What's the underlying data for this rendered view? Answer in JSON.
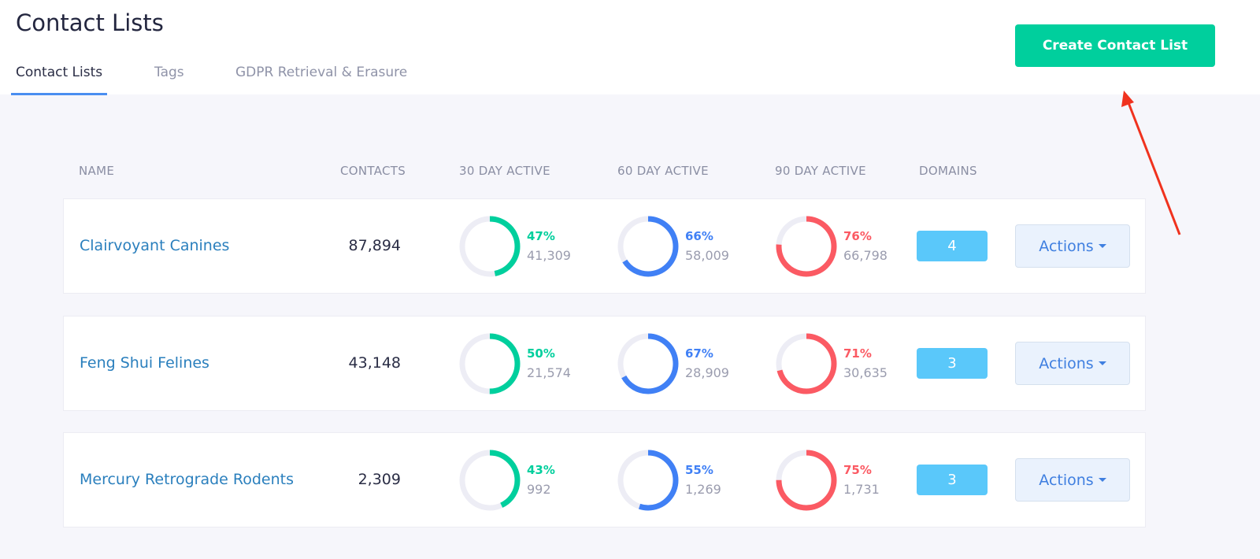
{
  "page_title": "Contact Lists",
  "tabs": [
    {
      "label": "Contact Lists",
      "active": true
    },
    {
      "label": "Tags"
    },
    {
      "label": "GDPR Retrieval & Erasure"
    }
  ],
  "create_button": "Create Contact List",
  "columns": [
    "NAME",
    "CONTACTS",
    "30 DAY ACTIVE",
    "60 DAY ACTIVE",
    "90 DAY ACTIVE",
    "DOMAINS"
  ],
  "colors": {
    "d30": "#00cf9d",
    "d60": "#4080f5",
    "d90": "#fb5a63",
    "track": "#ededf5"
  },
  "rows": [
    {
      "name": "Clairvoyant Canines",
      "contacts": "87,894",
      "d30": {
        "pct": "47%",
        "value": 47,
        "count": "41,309"
      },
      "d60": {
        "pct": "66%",
        "value": 66,
        "count": "58,009"
      },
      "d90": {
        "pct": "76%",
        "value": 76,
        "count": "66,798"
      },
      "domains": "4",
      "actions": "Actions"
    },
    {
      "name": "Feng Shui Felines",
      "contacts": "43,148",
      "d30": {
        "pct": "50%",
        "value": 50,
        "count": "21,574"
      },
      "d60": {
        "pct": "67%",
        "value": 67,
        "count": "28,909"
      },
      "d90": {
        "pct": "71%",
        "value": 71,
        "count": "30,635"
      },
      "domains": "3",
      "actions": "Actions"
    },
    {
      "name": "Mercury Retrograde Rodents",
      "contacts": "2,309",
      "d30": {
        "pct": "43%",
        "value": 43,
        "count": "992"
      },
      "d60": {
        "pct": "55%",
        "value": 55,
        "count": "1,269"
      },
      "d90": {
        "pct": "75%",
        "value": 75,
        "count": "1,731"
      },
      "domains": "3",
      "actions": "Actions"
    }
  ]
}
